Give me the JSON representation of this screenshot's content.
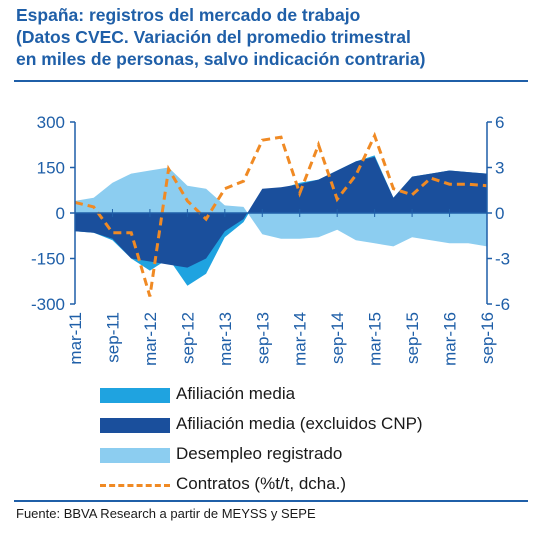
{
  "title": {
    "line1": "España: registros del mercado de trabajo",
    "line2": "(Datos CVEC. Variación del promedio trimestral",
    "line3": "en miles de personas, salvo indicación contraria)"
  },
  "source": "Fuente: BBVA Research a partir de MEYSS y SEPE",
  "colors": {
    "title": "#1f5fa8",
    "axis": "#1f5fa8",
    "afiliacion": "#1fa3e0",
    "afiliacion_cnp": "#1a4f9c",
    "desempleo": "#8ccdf0",
    "contratos": "#f08a24"
  },
  "chart_data": {
    "type": "area",
    "categories": [
      "mar-11",
      "jun-11",
      "sep-11",
      "dic-11",
      "mar-12",
      "jun-12",
      "sep-12",
      "dic-12",
      "mar-13",
      "jun-13",
      "sep-13",
      "dic-13",
      "mar-14",
      "jun-14",
      "sep-14",
      "dic-14",
      "mar-15",
      "jun-15",
      "sep-15",
      "dic-15",
      "mar-16",
      "jun-16",
      "sep-16"
    ],
    "x_tick_labels": [
      "mar-11",
      "sep-11",
      "mar-12",
      "sep-12",
      "mar-13",
      "sep-13",
      "mar-14",
      "sep-14",
      "mar-15",
      "sep-15",
      "mar-16",
      "sep-16"
    ],
    "y_left": {
      "ticks": [
        "300",
        "150",
        "0",
        "-150",
        "-300"
      ],
      "ylim": [
        -300,
        300
      ]
    },
    "y_right": {
      "ticks": [
        "6",
        "3",
        "0",
        "-3",
        "-6"
      ],
      "ylim": [
        -6,
        6
      ]
    },
    "series": [
      {
        "name": "Afiliación media",
        "axis": "left",
        "kind": "area",
        "values": [
          -60,
          -65,
          -90,
          -150,
          -190,
          -150,
          -240,
          -200,
          -80,
          -30,
          75,
          80,
          100,
          110,
          140,
          170,
          190,
          50,
          120,
          130,
          140,
          135,
          130
        ]
      },
      {
        "name": "Afiliación media (excluidos CNP)",
        "axis": "left",
        "kind": "area",
        "values": [
          -60,
          -65,
          -85,
          -150,
          -160,
          -170,
          -180,
          -150,
          -60,
          -20,
          80,
          85,
          95,
          110,
          140,
          170,
          185,
          50,
          120,
          130,
          140,
          135,
          130
        ]
      },
      {
        "name": "Desempleo registrado",
        "axis": "left",
        "kind": "area",
        "values": [
          40,
          50,
          100,
          130,
          140,
          150,
          90,
          80,
          25,
          20,
          -70,
          -85,
          -85,
          -80,
          -55,
          -90,
          -100,
          -110,
          -80,
          -90,
          -100,
          -100,
          -110
        ]
      },
      {
        "name": "Contratos (%t/t, dcha.)",
        "axis": "right",
        "kind": "line",
        "values": [
          0.7,
          0.4,
          -1.3,
          -1.3,
          -5.5,
          2.9,
          0.8,
          -0.4,
          1.6,
          2.1,
          4.8,
          5.0,
          1.3,
          4.5,
          0.9,
          2.5,
          5.1,
          1.6,
          1.2,
          2.3,
          1.9,
          1.9,
          1.8
        ]
      }
    ],
    "legend": [
      "Afiliación media",
      "Afiliación media (excluidos CNP)",
      "Desempleo registrado",
      "Contratos (%t/t, dcha.)"
    ],
    "legend_position": "bottom",
    "grid": false
  }
}
